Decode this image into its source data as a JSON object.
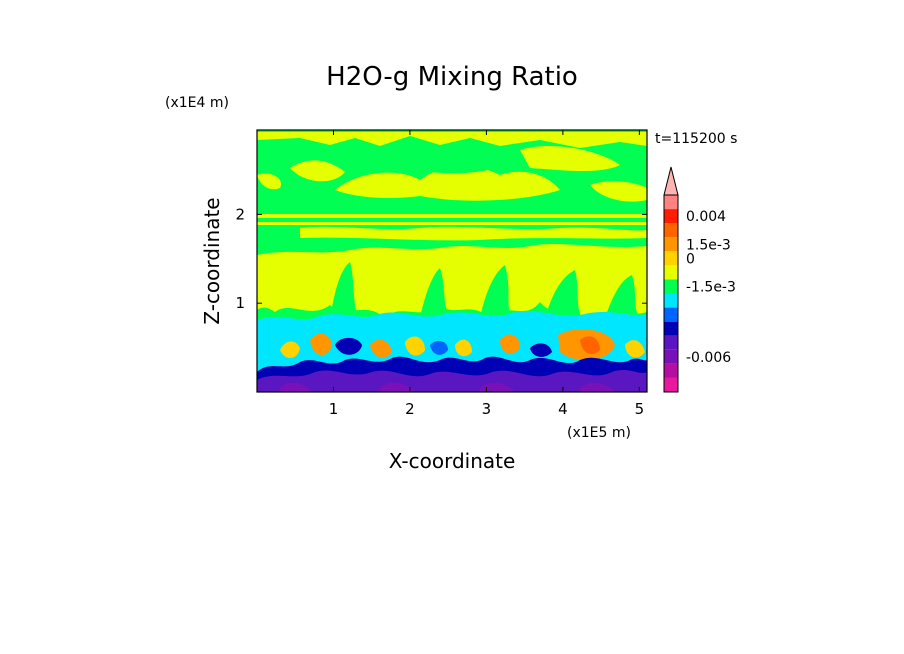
{
  "chart_data": {
    "type": "heatmap",
    "title": "H2O-g Mixing Ratio",
    "xlabel": "X-coordinate",
    "ylabel": "Z-coordinate",
    "x_unit": "(x1E5 m)",
    "y_unit": "(x1E4 m)",
    "time_label": "t=115200 s",
    "xlim": [
      0,
      5.1
    ],
    "ylim": [
      0,
      2.95
    ],
    "x_ticks": [
      {
        "value": 1,
        "label": "1"
      },
      {
        "value": 2,
        "label": "2"
      },
      {
        "value": 3,
        "label": "3"
      },
      {
        "value": 4,
        "label": "4"
      },
      {
        "value": 5,
        "label": "5"
      }
    ],
    "y_ticks": [
      {
        "value": 1,
        "label": "1"
      },
      {
        "value": 2,
        "label": "2"
      }
    ],
    "colorbar": {
      "colors": [
        "#e8199e",
        "#b40fa0",
        "#7a10b8",
        "#5a16c0",
        "#0000b4",
        "#0064ff",
        "#00e6ff",
        "#00ff52",
        "#e6ff00",
        "#ffd200",
        "#ff9600",
        "#ff6400",
        "#ff1e00",
        "#ff8282",
        "#ffb4b4"
      ],
      "tick_labels": [
        {
          "label": "0.004",
          "level": 12.5
        },
        {
          "label": "1.5e-3",
          "level": 10.5
        },
        {
          "label": "0",
          "level": 9.5
        },
        {
          "label": "-1.5e-3",
          "level": 7.5
        },
        {
          "label": "-0.006",
          "level": 2.5
        }
      ]
    },
    "field_bands": [
      {
        "z_top": 2.95,
        "z_bottom": 2.6,
        "dominant": "green",
        "secondary": "yellow"
      },
      {
        "z_top": 2.6,
        "z_bottom": 2.25,
        "dominant": "yellow",
        "secondary": "green"
      },
      {
        "z_top": 2.25,
        "z_bottom": 1.55,
        "dominant": "green",
        "secondary": "yellow"
      },
      {
        "z_top": 1.55,
        "z_bottom": 0.9,
        "dominant": "yellow",
        "secondary": "green"
      },
      {
        "z_top": 0.9,
        "z_bottom": 0.5,
        "dominant": "cyan",
        "secondary": "orange"
      },
      {
        "z_top": 0.5,
        "z_bottom": 0.0,
        "dominant": "purple",
        "secondary": "blue"
      }
    ]
  }
}
